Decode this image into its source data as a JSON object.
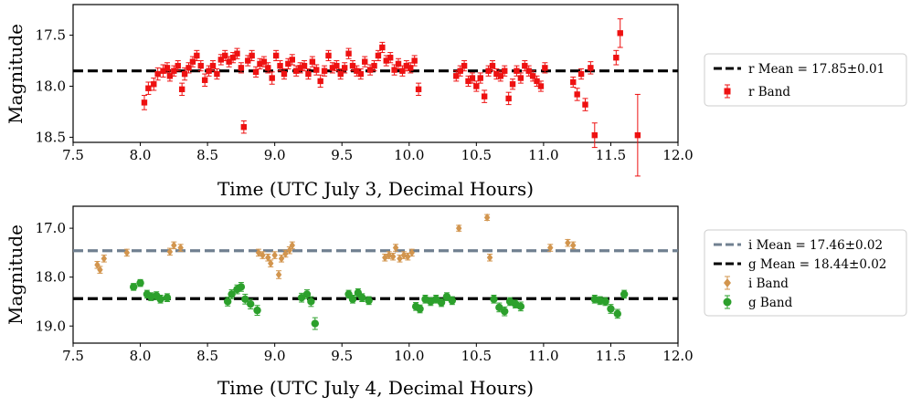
{
  "chart_data": [
    {
      "type": "scatter",
      "title": "",
      "xlabel": "Time (UTC July 3, Decimal Hours)",
      "ylabel": "Magnitude",
      "xlim": [
        7.5,
        12.0
      ],
      "ylim": [
        18.55,
        17.2
      ],
      "y_inverted": true,
      "xticks": [
        "7.5",
        "8.0",
        "8.5",
        "9.0",
        "9.5",
        "10.0",
        "10.5",
        "11.0",
        "11.5",
        "12.0"
      ],
      "yticks": [
        "17.5",
        "18.0",
        "18.5"
      ],
      "legend_position": "outside-right",
      "mean_lines": [
        {
          "label": "r Mean = 17.85±0.01",
          "value": 17.85,
          "color": "#000000"
        }
      ],
      "series": [
        {
          "name": "r Band",
          "marker": "square",
          "color": "#ee1111",
          "x": [
            8.03,
            8.06,
            8.1,
            8.13,
            8.17,
            8.2,
            8.22,
            8.25,
            8.28,
            8.31,
            8.33,
            8.36,
            8.39,
            8.42,
            8.45,
            8.48,
            8.51,
            8.54,
            8.57,
            8.6,
            8.63,
            8.66,
            8.69,
            8.72,
            8.75,
            8.77,
            8.8,
            8.83,
            8.86,
            8.89,
            8.92,
            8.95,
            8.98,
            9.01,
            9.04,
            9.07,
            9.1,
            9.13,
            9.16,
            9.19,
            9.22,
            9.25,
            9.28,
            9.31,
            9.34,
            9.37,
            9.4,
            9.43,
            9.46,
            9.49,
            9.52,
            9.55,
            9.58,
            9.61,
            9.64,
            9.67,
            9.71,
            9.74,
            9.77,
            9.8,
            9.83,
            9.86,
            9.89,
            9.92,
            9.95,
            9.98,
            10.01,
            10.04,
            10.07,
            10.35,
            10.38,
            10.41,
            10.44,
            10.47,
            10.5,
            10.53,
            10.56,
            10.59,
            10.62,
            10.65,
            10.68,
            10.71,
            10.74,
            10.77,
            10.8,
            10.83,
            10.86,
            10.89,
            10.92,
            10.95,
            10.98,
            11.01,
            11.22,
            11.25,
            11.28,
            11.31,
            11.35,
            11.38,
            11.54,
            11.57,
            11.7
          ],
          "y": [
            18.16,
            18.02,
            17.98,
            17.88,
            17.85,
            17.82,
            17.9,
            17.85,
            17.8,
            18.03,
            17.88,
            17.82,
            17.76,
            17.7,
            17.8,
            17.94,
            17.85,
            17.8,
            17.88,
            17.74,
            17.7,
            17.76,
            17.72,
            17.68,
            17.82,
            18.4,
            17.75,
            17.7,
            17.86,
            17.78,
            17.76,
            17.82,
            17.92,
            17.7,
            17.8,
            17.88,
            17.78,
            17.74,
            17.85,
            17.82,
            17.8,
            17.88,
            17.76,
            17.84,
            17.95,
            17.85,
            17.7,
            17.82,
            17.8,
            17.88,
            17.82,
            17.68,
            17.8,
            17.85,
            17.88,
            17.76,
            17.84,
            17.8,
            17.7,
            17.62,
            17.75,
            17.72,
            17.84,
            17.78,
            17.85,
            17.8,
            17.82,
            17.75,
            18.03,
            17.9,
            17.85,
            17.8,
            17.95,
            17.92,
            18.0,
            17.92,
            18.1,
            17.85,
            17.8,
            17.88,
            17.9,
            17.85,
            18.12,
            17.98,
            17.85,
            17.92,
            17.8,
            17.85,
            17.9,
            17.95,
            18.0,
            17.82,
            17.96,
            18.08,
            17.88,
            18.18,
            17.82,
            18.48,
            17.72,
            17.48,
            18.48
          ],
          "err": [
            0.07,
            0.06,
            0.06,
            0.06,
            0.06,
            0.05,
            0.05,
            0.05,
            0.05,
            0.06,
            0.06,
            0.05,
            0.05,
            0.05,
            0.05,
            0.06,
            0.05,
            0.05,
            0.05,
            0.05,
            0.05,
            0.05,
            0.05,
            0.05,
            0.05,
            0.06,
            0.05,
            0.05,
            0.05,
            0.05,
            0.05,
            0.05,
            0.06,
            0.05,
            0.05,
            0.05,
            0.05,
            0.05,
            0.05,
            0.05,
            0.05,
            0.05,
            0.05,
            0.05,
            0.06,
            0.05,
            0.05,
            0.05,
            0.05,
            0.05,
            0.05,
            0.05,
            0.05,
            0.05,
            0.05,
            0.05,
            0.05,
            0.05,
            0.05,
            0.05,
            0.05,
            0.05,
            0.05,
            0.05,
            0.05,
            0.05,
            0.05,
            0.05,
            0.06,
            0.05,
            0.05,
            0.05,
            0.05,
            0.05,
            0.05,
            0.05,
            0.06,
            0.05,
            0.05,
            0.05,
            0.05,
            0.05,
            0.06,
            0.05,
            0.05,
            0.05,
            0.05,
            0.05,
            0.05,
            0.05,
            0.05,
            0.05,
            0.05,
            0.06,
            0.05,
            0.06,
            0.06,
            0.12,
            0.07,
            0.14,
            0.4
          ]
        }
      ]
    },
    {
      "type": "scatter",
      "title": "",
      "xlabel": "Time (UTC July 4, Decimal Hours)",
      "ylabel": "Magnitude",
      "xlim": [
        7.5,
        12.0
      ],
      "ylim": [
        19.35,
        16.55
      ],
      "y_inverted": true,
      "xticks": [
        "7.5",
        "8.0",
        "8.5",
        "9.0",
        "9.5",
        "10.0",
        "10.5",
        "11.0",
        "11.5",
        "12.0"
      ],
      "yticks": [
        "17.0",
        "18.0",
        "19.0"
      ],
      "legend_position": "outside-right",
      "mean_lines": [
        {
          "label": "i Mean = 17.46±0.02",
          "value": 17.46,
          "color": "#708090"
        },
        {
          "label": "g Mean = 18.44±0.02",
          "value": 18.44,
          "color": "#000000"
        }
      ],
      "series": [
        {
          "name": "i Band",
          "marker": "diamond",
          "color": "#d2954e",
          "x": [
            7.68,
            7.7,
            7.73,
            7.9,
            8.22,
            8.25,
            8.3,
            8.88,
            8.91,
            8.95,
            8.97,
            9.0,
            9.03,
            9.05,
            9.08,
            9.11,
            9.13,
            9.82,
            9.85,
            9.88,
            9.9,
            9.93,
            9.96,
            9.99,
            10.02,
            10.37,
            10.58,
            10.6,
            11.05,
            11.18,
            11.22
          ],
          "y": [
            17.75,
            17.85,
            17.62,
            17.5,
            17.48,
            17.35,
            17.4,
            17.5,
            17.55,
            17.6,
            17.72,
            17.55,
            17.95,
            17.62,
            17.52,
            17.45,
            17.35,
            17.6,
            17.55,
            17.58,
            17.4,
            17.62,
            17.55,
            17.58,
            17.5,
            17.0,
            16.78,
            17.6,
            17.4,
            17.3,
            17.35
          ],
          "err": [
            0.07,
            0.07,
            0.07,
            0.07,
            0.07,
            0.07,
            0.07,
            0.07,
            0.07,
            0.07,
            0.07,
            0.07,
            0.08,
            0.07,
            0.07,
            0.07,
            0.07,
            0.07,
            0.07,
            0.07,
            0.07,
            0.07,
            0.07,
            0.07,
            0.07,
            0.06,
            0.06,
            0.07,
            0.07,
            0.07,
            0.07
          ]
        },
        {
          "name": "g Band",
          "marker": "circle",
          "color": "#2ca02c",
          "x": [
            7.95,
            8.0,
            8.05,
            8.08,
            8.12,
            8.15,
            8.2,
            8.65,
            8.68,
            8.72,
            8.75,
            8.78,
            8.82,
            8.87,
            9.2,
            9.24,
            9.27,
            9.3,
            9.55,
            9.58,
            9.62,
            9.65,
            9.7,
            10.05,
            10.08,
            10.12,
            10.16,
            10.2,
            10.24,
            10.28,
            10.32,
            10.63,
            10.67,
            10.71,
            10.75,
            10.79,
            10.83,
            11.38,
            11.42,
            11.46,
            11.5,
            11.55,
            11.6
          ],
          "y": [
            18.2,
            18.12,
            18.35,
            18.4,
            18.38,
            18.45,
            18.42,
            18.5,
            18.35,
            18.25,
            18.2,
            18.45,
            18.55,
            18.68,
            18.42,
            18.35,
            18.5,
            18.95,
            18.35,
            18.45,
            18.32,
            18.42,
            18.48,
            18.6,
            18.65,
            18.45,
            18.5,
            18.45,
            18.52,
            18.4,
            18.48,
            18.45,
            18.62,
            18.7,
            18.5,
            18.55,
            18.6,
            18.45,
            18.48,
            18.5,
            18.65,
            18.75,
            18.35
          ],
          "err": [
            0.07,
            0.07,
            0.08,
            0.08,
            0.08,
            0.08,
            0.08,
            0.09,
            0.09,
            0.09,
            0.09,
            0.1,
            0.1,
            0.1,
            0.09,
            0.09,
            0.1,
            0.12,
            0.08,
            0.08,
            0.08,
            0.08,
            0.08,
            0.08,
            0.08,
            0.08,
            0.08,
            0.08,
            0.08,
            0.08,
            0.08,
            0.08,
            0.09,
            0.09,
            0.08,
            0.08,
            0.09,
            0.08,
            0.08,
            0.08,
            0.09,
            0.09,
            0.08
          ]
        }
      ]
    }
  ]
}
